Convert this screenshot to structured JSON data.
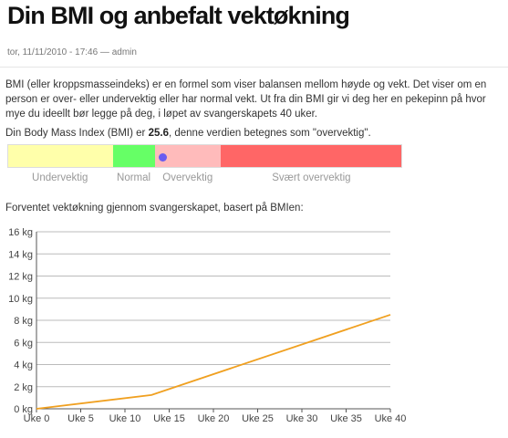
{
  "post": {
    "title": "Din BMI og anbefalt vektøkning",
    "meta": "tor, 11/11/2010 - 17:46 — admin",
    "intro": "BMI (eller kroppsmasseindeks) er en formel som viser balansen mellom høyde og vekt. Det viser om en person er over- eller undervektig eller har normal vekt. Ut fra din BMI gir vi deg her en pekepinn på hvor mye du ideellt bør legge på deg, i løpet av svangerskapets 40 uker."
  },
  "bmi": {
    "prefix": "Din Body Mass Index (BMI) er ",
    "value": "25.6",
    "suffix": ", denne verdien betegnes som \"overvektig\".",
    "marker_value": 25.6,
    "scale_min": 13.8,
    "scale_max": 43.8,
    "categories": [
      {
        "label": "Undervektig",
        "from": 13.8,
        "to": 21.8,
        "color": "#ffffaa"
      },
      {
        "label": "Normal",
        "from": 21.8,
        "to": 25.0,
        "color": "#66ff66"
      },
      {
        "label": "Overvektig",
        "from": 25.0,
        "to": 30.0,
        "color": "#ffbbbb"
      },
      {
        "label": "Svært overvektig",
        "from": 30.0,
        "to": 43.8,
        "color": "#ff6666"
      }
    ],
    "marker_color": "#6a5cf0"
  },
  "chart_caption": "Forventet vektøkning gjennom svangerskapet, basert på BMIen:",
  "chart_data": {
    "type": "line",
    "title": "",
    "xlabel": "",
    "ylabel": "",
    "x": [
      0,
      13,
      40
    ],
    "y": [
      0,
      1.25,
      8.5
    ],
    "xlim": [
      0,
      40
    ],
    "ylim": [
      0,
      16
    ],
    "x_tick_labels": [
      "Uke 0",
      "Uke 5",
      "Uke 10",
      "Uke 15",
      "Uke 20",
      "Uke 25",
      "Uke 30",
      "Uke 35",
      "Uke 40"
    ],
    "x_tick_values": [
      0,
      5,
      10,
      15,
      20,
      25,
      30,
      35,
      40
    ],
    "y_tick_labels": [
      "0 kg",
      "2 kg",
      "4 kg",
      "6 kg",
      "8 kg",
      "10 kg",
      "12 kg",
      "14 kg",
      "16 kg"
    ],
    "y_tick_values": [
      0,
      2,
      4,
      6,
      8,
      10,
      12,
      14,
      16
    ],
    "grid": true,
    "line_color": "#f0a020",
    "grid_color": "#bbbbbb"
  }
}
